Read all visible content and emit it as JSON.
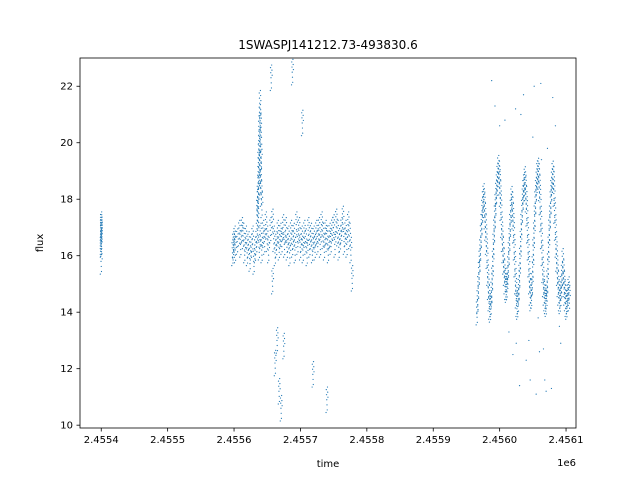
{
  "chart_data": {
    "type": "scatter",
    "title": "1SWASPJ141212.73-493830.6",
    "xlabel": "time",
    "ylabel": "flux",
    "x_offset_label": "1e6",
    "xlim": [
      2455368,
      2456115
    ],
    "ylim": [
      9.9,
      23.0
    ],
    "x_ticks": [
      2455400,
      2455500,
      2455600,
      2455700,
      2455800,
      2455900,
      2456000,
      2456100
    ],
    "x_tick_labels": [
      "2.4554",
      "2.4555",
      "2.4556",
      "2.4557",
      "2.4558",
      "2.4559",
      "2.4560",
      "2.4561"
    ],
    "y_ticks": [
      10,
      12,
      14,
      16,
      18,
      20,
      22
    ],
    "y_tick_labels": [
      "10",
      "12",
      "14",
      "16",
      "18",
      "20",
      "22"
    ],
    "grid": false,
    "marker_color": "#1f77b4",
    "series": [
      {
        "x": [
          2455400,
          2455400,
          2455400,
          2455400,
          2455400,
          2455400,
          2455400,
          2455400,
          2455598,
          2455599,
          2455600,
          2455601,
          2455602,
          2455605,
          2455608,
          2455610,
          2455612,
          2455614,
          2455616,
          2455618,
          2455620,
          2455622,
          2455624,
          2455626,
          2455628,
          2455630,
          2455632,
          2455634,
          2455636,
          2455638,
          2455640,
          2455642,
          2455644,
          2455646,
          2455648,
          2455650,
          2455652,
          2455655,
          2455658,
          2455660,
          2455662,
          2455664,
          2455666,
          2455668,
          2455670,
          2455672,
          2455674,
          2455676,
          2455678,
          2455680,
          2455682,
          2455684,
          2455686,
          2455688,
          2455690,
          2455692,
          2455694,
          2455696,
          2455698,
          2455700,
          2455702,
          2455704,
          2455706,
          2455708,
          2455710,
          2455712,
          2455714,
          2455716,
          2455718,
          2455720,
          2455722,
          2455724,
          2455726,
          2455728,
          2455730,
          2455732,
          2455734,
          2455736,
          2455738,
          2455740,
          2455742,
          2455744,
          2455746,
          2455748,
          2455750,
          2455752,
          2455754,
          2455756,
          2455758,
          2455760,
          2455762,
          2455764,
          2455766,
          2455768,
          2455770,
          2455772,
          2455774,
          2455776,
          2455637,
          2455637,
          2455637,
          2455638,
          2455638,
          2455638,
          2455639,
          2455639,
          2455640,
          2455636,
          2455636,
          2455636,
          2455640,
          2455641,
          2455635,
          2455640,
          2455640,
          2455641,
          2455642,
          2455639,
          2455656,
          2455658,
          2455662,
          2455665,
          2455668,
          2455671,
          2455675,
          2455688,
          2455703,
          2455719,
          2455740,
          2455778
        ],
        "y": [
          16.7,
          16.9,
          17.0,
          16.5,
          16.8,
          17.1,
          16.4,
          15.8,
          16.1,
          16.4,
          16.3,
          16.6,
          16.2,
          16.5,
          16.8,
          16.4,
          16.9,
          16.7,
          16.2,
          16.6,
          16.1,
          16.4,
          15.9,
          16.3,
          16.6,
          15.8,
          16.2,
          16.5,
          16.9,
          16.3,
          16.7,
          16.2,
          16.8,
          16.5,
          17.1,
          16.6,
          16.2,
          16.9,
          17.2,
          16.6,
          16.1,
          16.4,
          16.8,
          16.3,
          16.7,
          16.5,
          17.0,
          16.4,
          16.9,
          16.3,
          16.6,
          16.1,
          16.8,
          16.4,
          16.7,
          16.2,
          17.1,
          16.5,
          16.9,
          16.3,
          16.6,
          16.2,
          16.8,
          16.5,
          16.1,
          16.9,
          16.4,
          16.7,
          16.2,
          16.6,
          16.3,
          16.8,
          16.5,
          16.9,
          16.4,
          17.1,
          16.7,
          16.3,
          16.8,
          16.6,
          16.2,
          16.7,
          16.5,
          16.9,
          17.0,
          16.4,
          17.2,
          16.8,
          16.3,
          16.6,
          16.9,
          17.3,
          16.5,
          16.8,
          16.4,
          17.1,
          16.7,
          16.2,
          18.4,
          18.8,
          19.3,
          19.9,
          20.4,
          19.6,
          20.9,
          21.4,
          19.0,
          18.1,
          17.9,
          17.4,
          20.1,
          19.5,
          17.6,
          20.6,
          18.6,
          18.2,
          17.8,
          19.2,
          22.3,
          15.1,
          12.2,
          13.0,
          11.2,
          10.6,
          12.8,
          22.5,
          20.7,
          11.8,
          10.9,
          15.2
        ],
        "x2": [],
        "y2": []
      },
      {
        "x": [
          2455966,
          2455967,
          2455968,
          2455969,
          2455970,
          2455971,
          2455972,
          2455973,
          2455974,
          2455975,
          2455976,
          2455977,
          2455978,
          2455979,
          2455980,
          2455981,
          2455982,
          2455983,
          2455984,
          2455985,
          2455986,
          2455987,
          2455988,
          2455989,
          2455990,
          2455991,
          2455992,
          2455993,
          2455994,
          2455995,
          2455996,
          2455997,
          2455998,
          2455999,
          2456000,
          2456001,
          2456002,
          2456003,
          2456004,
          2456005,
          2456006,
          2456007,
          2456008,
          2456009,
          2456010,
          2456011,
          2456012,
          2456013,
          2456014,
          2456015,
          2456016,
          2456017,
          2456018,
          2456019,
          2456020,
          2456021,
          2456022,
          2456023,
          2456024,
          2456025,
          2456026,
          2456027,
          2456028,
          2456029,
          2456030,
          2456031,
          2456032,
          2456033,
          2456034,
          2456035,
          2456036,
          2456037,
          2456038,
          2456039,
          2456040,
          2456041,
          2456042,
          2456043,
          2456044,
          2456045,
          2456046,
          2456047,
          2456048,
          2456049,
          2456050,
          2456051,
          2456052,
          2456053,
          2456054,
          2456055,
          2456056,
          2456057,
          2456058,
          2456059,
          2456060,
          2456061,
          2456062,
          2456063,
          2456064,
          2456065,
          2456066,
          2456067,
          2456068,
          2456069,
          2456070,
          2456071,
          2456072,
          2456073,
          2456074,
          2456075,
          2456076,
          2456077,
          2456078,
          2456079,
          2456080,
          2456081,
          2456082,
          2456083,
          2456084,
          2456085,
          2456086,
          2456087,
          2456088,
          2456089,
          2456090,
          2456091,
          2456092,
          2456093,
          2456094,
          2456095,
          2456096,
          2456097,
          2456098,
          2456099,
          2456100,
          2456101,
          2456102,
          2456103,
          2456104,
          2456105
        ],
        "y": [
          14.0,
          14.4,
          14.9,
          15.4,
          15.8,
          16.2,
          16.7,
          17.1,
          17.6,
          17.9,
          18.1,
          17.8,
          17.4,
          17.0,
          16.5,
          16.0,
          15.4,
          14.9,
          14.5,
          14.2,
          14.1,
          14.3,
          14.7,
          15.2,
          15.8,
          16.4,
          16.9,
          17.4,
          17.8,
          18.2,
          18.5,
          18.8,
          19.1,
          18.9,
          18.6,
          18.2,
          17.7,
          17.1,
          16.6,
          16.2,
          15.8,
          15.4,
          15.1,
          14.9,
          14.8,
          14.9,
          15.2,
          15.6,
          16.1,
          16.6,
          17.1,
          17.6,
          18.0,
          17.8,
          17.4,
          16.9,
          16.3,
          15.7,
          15.1,
          14.6,
          14.3,
          14.2,
          14.4,
          14.8,
          15.3,
          15.9,
          16.5,
          17.1,
          17.6,
          18.0,
          18.3,
          18.5,
          18.7,
          18.4,
          18.0,
          17.5,
          16.9,
          16.3,
          15.7,
          15.1,
          14.7,
          14.5,
          14.6,
          15.0,
          15.6,
          16.2,
          16.8,
          17.4,
          17.9,
          18.3,
          18.6,
          18.9,
          19.0,
          18.8,
          18.4,
          17.9,
          17.3,
          16.7,
          16.1,
          15.5,
          15.0,
          14.7,
          14.5,
          14.4,
          14.3,
          14.6,
          15.1,
          15.7,
          16.3,
          16.9,
          17.4,
          17.9,
          18.3,
          18.6,
          18.9,
          18.7,
          18.2,
          17.6,
          17.0,
          16.4,
          15.9,
          15.4,
          15.0,
          14.7,
          14.5,
          14.4,
          14.6,
          14.9,
          15.3,
          15.8,
          15.4,
          15.0,
          14.7,
          14.5,
          14.3,
          14.2,
          14.4,
          14.6,
          14.8,
          14.5
        ],
        "x2": [
          2456020,
          2456024,
          2456030,
          2456036,
          2456044,
          2456052,
          2456060,
          2456070,
          2456080,
          2456090,
          2456040,
          2456046,
          2456050,
          2456055,
          2456062,
          2456066,
          2456072,
          2456078,
          2456084,
          2456092,
          2455988,
          2455993,
          2456000,
          2456008,
          2456014,
          2456025,
          2456032,
          2456058,
          2456063,
          2456068
        ],
        "y2": [
          12.5,
          21.2,
          11.4,
          21.7,
          13.0,
          22.0,
          12.6,
          11.2,
          21.6,
          13.5,
          12.3,
          11.6,
          20.2,
          11.1,
          22.1,
          12.7,
          19.8,
          11.3,
          20.6,
          12.9,
          22.2,
          21.3,
          20.6,
          20.8,
          13.3,
          12.9,
          21.0,
          13.8,
          19.4,
          11.6
        ]
      }
    ]
  }
}
